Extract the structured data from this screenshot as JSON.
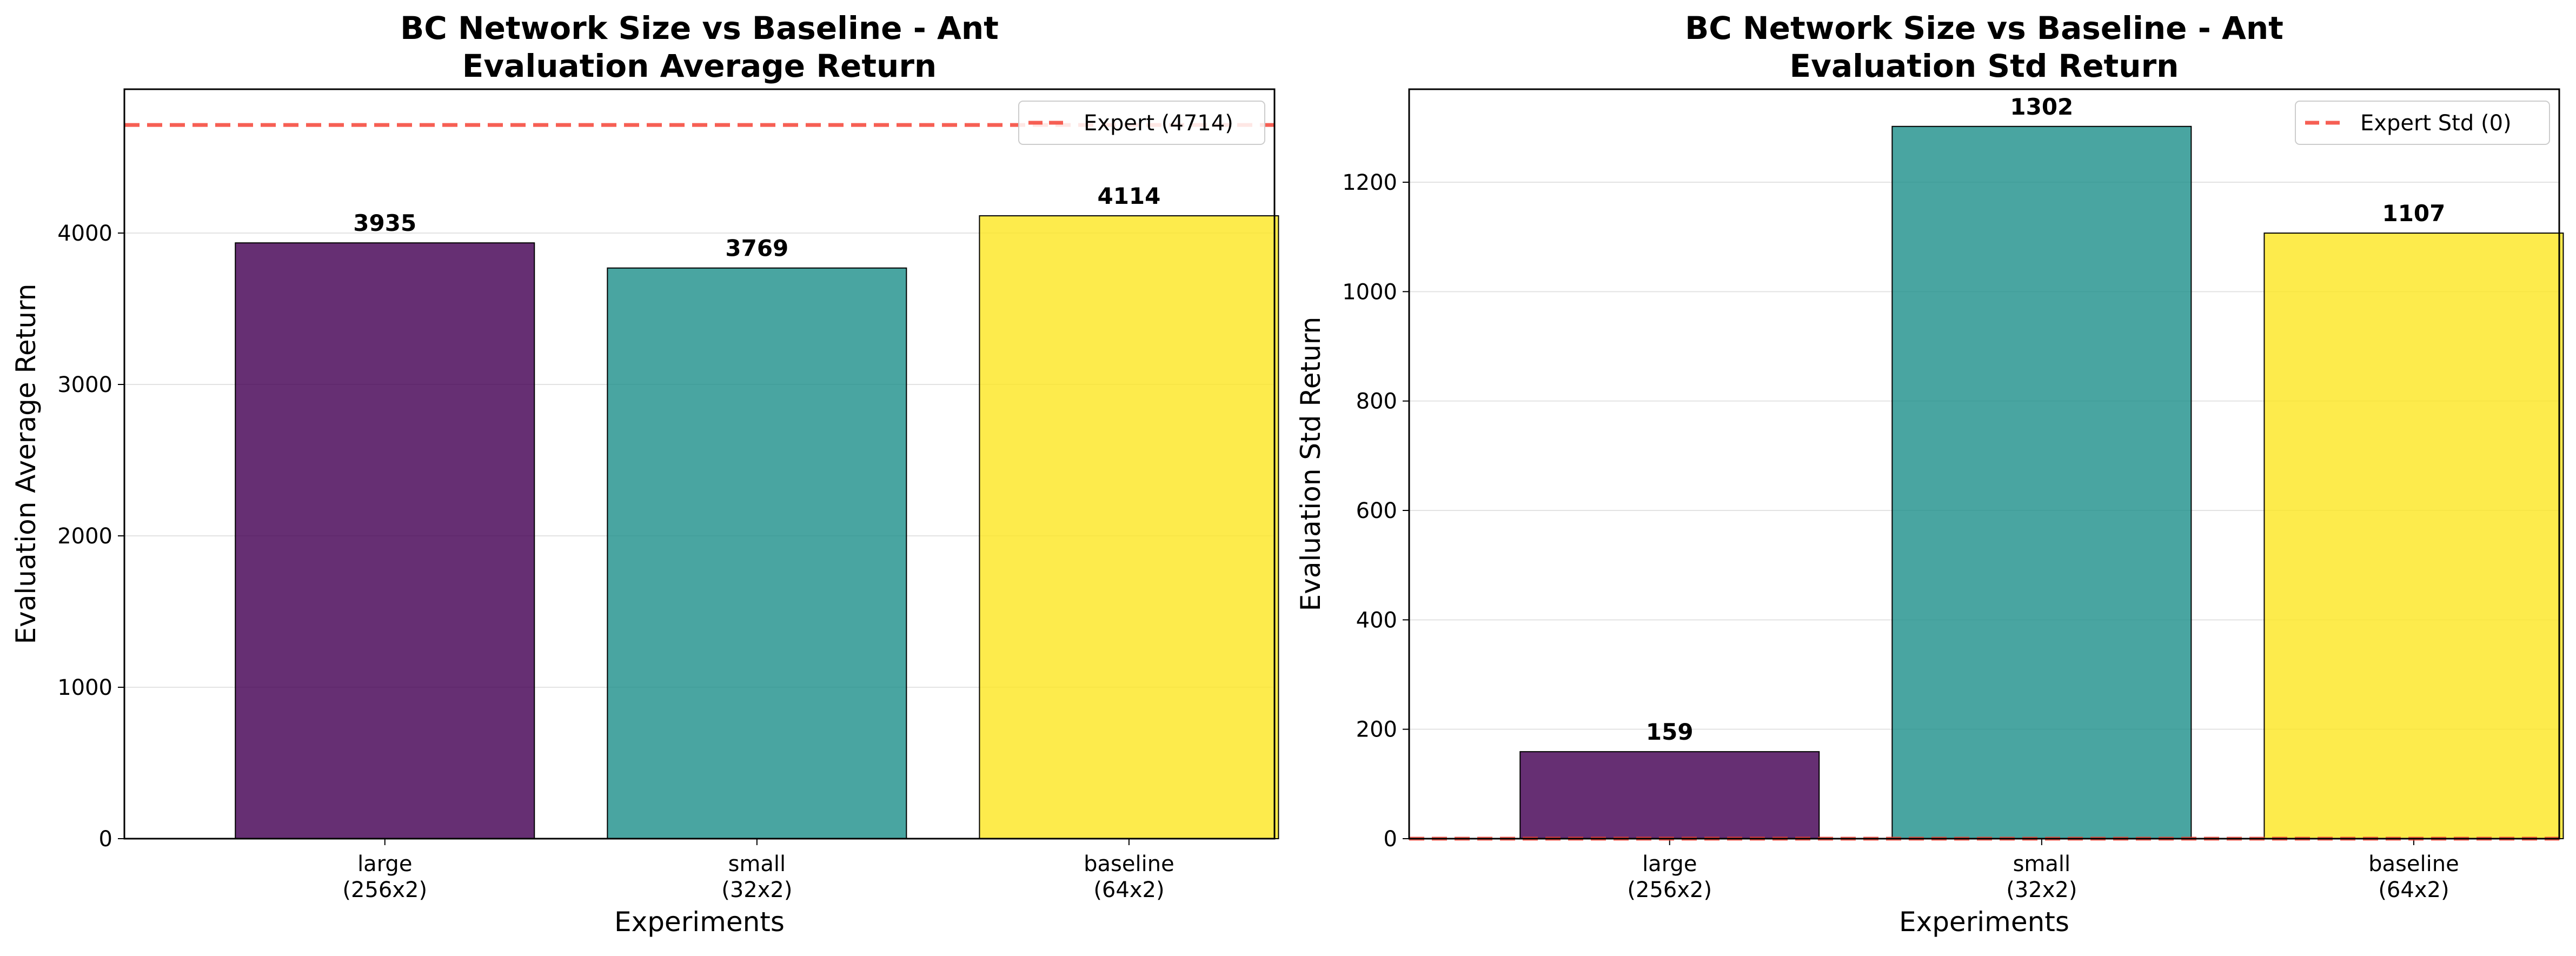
{
  "chart_data": [
    {
      "type": "bar",
      "title": "BC Network Size vs Baseline - Ant\nEvaluation Average Return",
      "xlabel": "Experiments",
      "ylabel": "Evaluation Average Return",
      "categories": [
        "large\n(256x2)",
        "small\n(32x2)",
        "baseline\n(64x2)"
      ],
      "values": [
        3935,
        3769,
        4114
      ],
      "data_labels": [
        "3935",
        "3769",
        "4114"
      ],
      "colors": [
        "#440154",
        "#21918c",
        "#fde725"
      ],
      "ylim": [
        0,
        4950
      ],
      "yticks": [
        0,
        1000,
        2000,
        3000,
        4000
      ],
      "grid": "horizontal",
      "reference_line": {
        "label": "Expert (4714)",
        "value": 4714,
        "color": "#f44336",
        "style": "dashed"
      },
      "legend": {
        "placement": "top-right"
      }
    },
    {
      "type": "bar",
      "title": "BC Network Size vs Baseline - Ant\nEvaluation Std Return",
      "xlabel": "Experiments",
      "ylabel": "Evaluation Std Return",
      "categories": [
        "large\n(256x2)",
        "small\n(32x2)",
        "baseline\n(64x2)"
      ],
      "values": [
        159,
        1302,
        1107
      ],
      "data_labels": [
        "159",
        "1302",
        "1107"
      ],
      "colors": [
        "#440154",
        "#21918c",
        "#fde725"
      ],
      "ylim": [
        0,
        1370
      ],
      "yticks": [
        0,
        200,
        400,
        600,
        800,
        1000,
        1200
      ],
      "grid": "horizontal",
      "reference_line": {
        "label": "Expert Std (0)",
        "value": 0,
        "color": "#f44336",
        "style": "dashed"
      },
      "legend": {
        "placement": "top-right"
      }
    }
  ]
}
